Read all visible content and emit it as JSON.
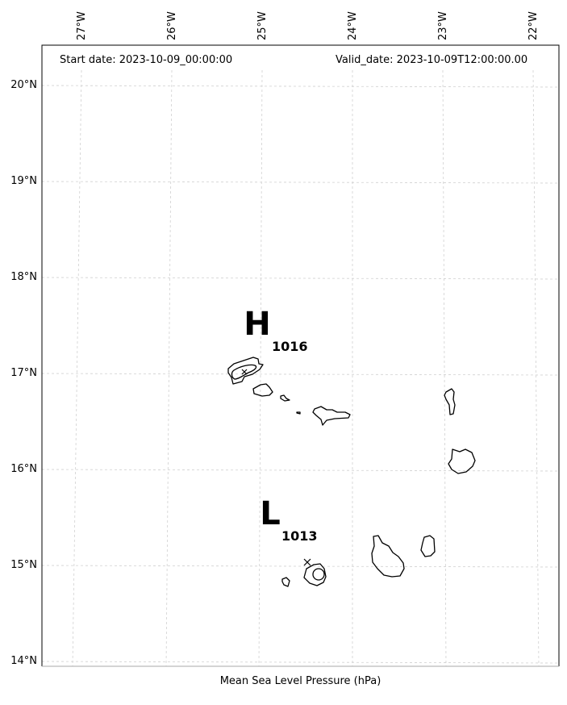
{
  "header": {
    "start_date": "Start date: 2023-10-09_00:00:00",
    "valid_date": "Valid_date: 2023-10-09T12:00:00.00"
  },
  "axes": {
    "longitude_labels": [
      "27°W",
      "26°W",
      "25°W",
      "24°W",
      "23°W",
      "22°W"
    ],
    "latitude_labels": [
      "20°N",
      "19°N",
      "18°N",
      "17°N",
      "16°N",
      "15°N",
      "14°N"
    ]
  },
  "pressure_centers": [
    {
      "symbol": "H",
      "value": "1016"
    },
    {
      "symbol": "L",
      "value": "1013"
    }
  ],
  "footer": {
    "variable_label": "Mean Sea Level Pressure (hPa)"
  },
  "map_info": {
    "region": "Cape Verde islands",
    "gridlines": true,
    "gridline_style": "dashed light gray",
    "coastline_color": "#000000"
  }
}
